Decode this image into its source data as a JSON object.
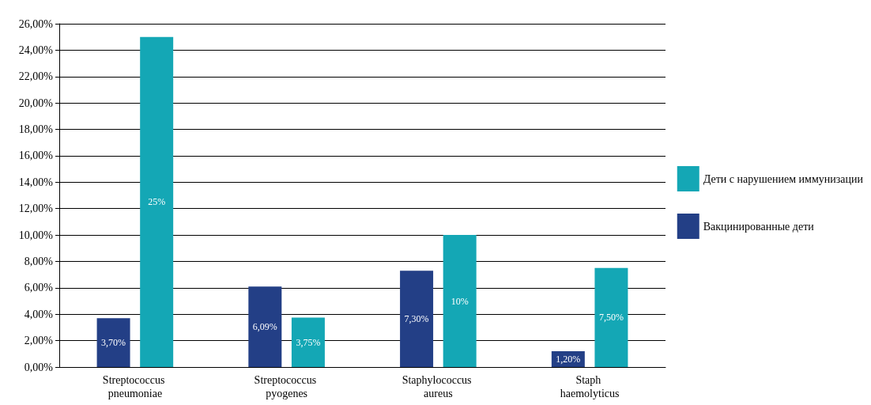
{
  "chart_data": {
    "type": "bar",
    "categories": [
      "Streptococcus pneumoniae",
      "Streptococcus pyogenes",
      "Staphylococcus aureus",
      "Staph haemolyticus"
    ],
    "series": [
      {
        "name": "Вакцинированные дети",
        "color": "#233f86",
        "values": [
          3.7,
          6.09,
          7.3,
          1.2
        ],
        "value_labels": [
          "3,70%",
          "6,09%",
          "7,30%",
          "1,20%"
        ]
      },
      {
        "name": "Дети с нарушением иммунизации",
        "color": "#14a7b5",
        "values": [
          25,
          3.75,
          10,
          7.5
        ],
        "value_labels": [
          "25%",
          "3,75%",
          "10%",
          "7,50%"
        ]
      }
    ],
    "ylim": [
      0,
      26
    ],
    "yticks": [
      {
        "value": 0,
        "label": "0,00%"
      },
      {
        "value": 2,
        "label": "2,00%"
      },
      {
        "value": 4,
        "label": "4,00%"
      },
      {
        "value": 6,
        "label": "6,00%"
      },
      {
        "value": 8,
        "label": "8,00%"
      },
      {
        "value": 10,
        "label": "10,00%"
      },
      {
        "value": 12,
        "label": "12,00%"
      },
      {
        "value": 14,
        "label": "14,00%"
      },
      {
        "value": 16,
        "label": "16,00%"
      },
      {
        "value": 18,
        "label": "18,00%"
      },
      {
        "value": 20,
        "label": "20,00%"
      },
      {
        "value": 22,
        "label": "22,00%"
      },
      {
        "value": 24,
        "label": "24,00%"
      },
      {
        "value": 26,
        "label": "26,00%"
      }
    ],
    "grid": "y",
    "legend": "right"
  }
}
